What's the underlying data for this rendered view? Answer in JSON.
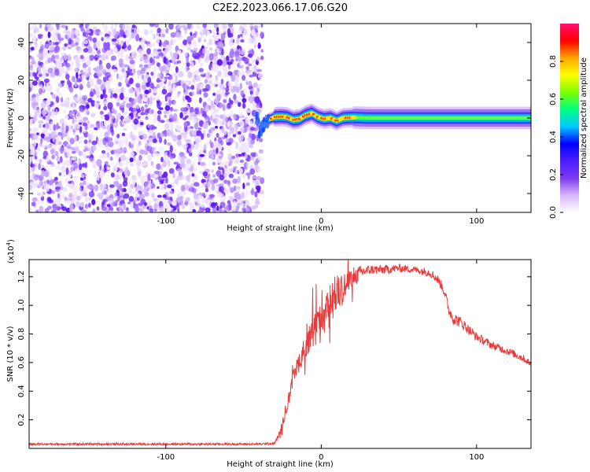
{
  "title": "C2E2.2023.066.17.06.G20",
  "chart_data": [
    {
      "type": "heatmap",
      "xlabel": "Height of straight line (km)",
      "ylabel": "Frequency (Hz)",
      "xlim": [
        -188,
        135
      ],
      "ylim": [
        -50,
        50
      ],
      "xticks": [
        -100,
        0,
        100
      ],
      "yticks": [
        -40,
        -20,
        0,
        20,
        40
      ],
      "colorbar": {
        "label": "Normalized spectral amplitude",
        "range": [
          0,
          1
        ],
        "ticks": [
          "0.0",
          "0.2",
          "0.4",
          "0.6",
          "0.8"
        ],
        "colors": [
          "#ffffff",
          "#d8b4fe",
          "#7c3aed",
          "#4c1dff",
          "#0000ff",
          "#00c8ff",
          "#00ff80",
          "#7cff00",
          "#ffff00",
          "#ffa500",
          "#ff0000",
          "#ff1070"
        ]
      },
      "noise_region": {
        "x_range": [
          -188,
          -38
        ],
        "freq_range": [
          -50,
          50
        ]
      },
      "signal_trace": {
        "x": [
          -40,
          -37,
          -34,
          -30,
          -26,
          -22,
          -18,
          -14,
          -10,
          -6,
          -2,
          2,
          6,
          10,
          14,
          20,
          30,
          50,
          80,
          110,
          135
        ],
        "freq": [
          -8,
          -4,
          -1,
          0.5,
          0.8,
          0.5,
          -1,
          -0.5,
          1.5,
          2.5,
          0.5,
          -0.5,
          0,
          -1.5,
          0,
          0.3,
          0,
          0,
          0,
          0,
          0
        ]
      },
      "grid": false
    },
    {
      "type": "line",
      "xlabel": "Height of straight line (km)",
      "ylabel": "SNR (10 * v/v)",
      "y_multiplier_label": "(x10",
      "y_multiplier_exp": "4",
      "xlim": [
        -188,
        135
      ],
      "ylim": [
        0,
        13200
      ],
      "xticks": [
        -100,
        0,
        100
      ],
      "yticks": [
        "0.2",
        "0.4",
        "0.6",
        "0.8",
        "1.0",
        "1.2"
      ],
      "color": "#e83a3a",
      "grid": false,
      "envelope": {
        "x": [
          -188,
          -40,
          -30,
          -26,
          -22,
          -18,
          -14,
          -10,
          -6,
          -4,
          0,
          4,
          8,
          12,
          16,
          20,
          24,
          28,
          32,
          40,
          50,
          60,
          70,
          75,
          78,
          80,
          82,
          85,
          90,
          95,
          100,
          110,
          120,
          130,
          135
        ],
        "y": [
          300,
          300,
          350,
          1200,
          3000,
          4800,
          6200,
          7100,
          7800,
          8300,
          8600,
          9500,
          10600,
          11000,
          11400,
          11800,
          12200,
          12400,
          12500,
          12500,
          12600,
          12500,
          12300,
          11800,
          11300,
          10700,
          9700,
          9100,
          8800,
          8300,
          7800,
          7200,
          6800,
          6300,
          5900
        ]
      },
      "noise_amplitude": {
        "x": [
          -188,
          -30,
          -25,
          -15,
          -5,
          5,
          12,
          20,
          30,
          60,
          80,
          85,
          100,
          135
        ],
        "y": [
          80,
          80,
          300,
          700,
          1200,
          1500,
          1300,
          700,
          350,
          250,
          350,
          450,
          300,
          250
        ]
      }
    }
  ]
}
